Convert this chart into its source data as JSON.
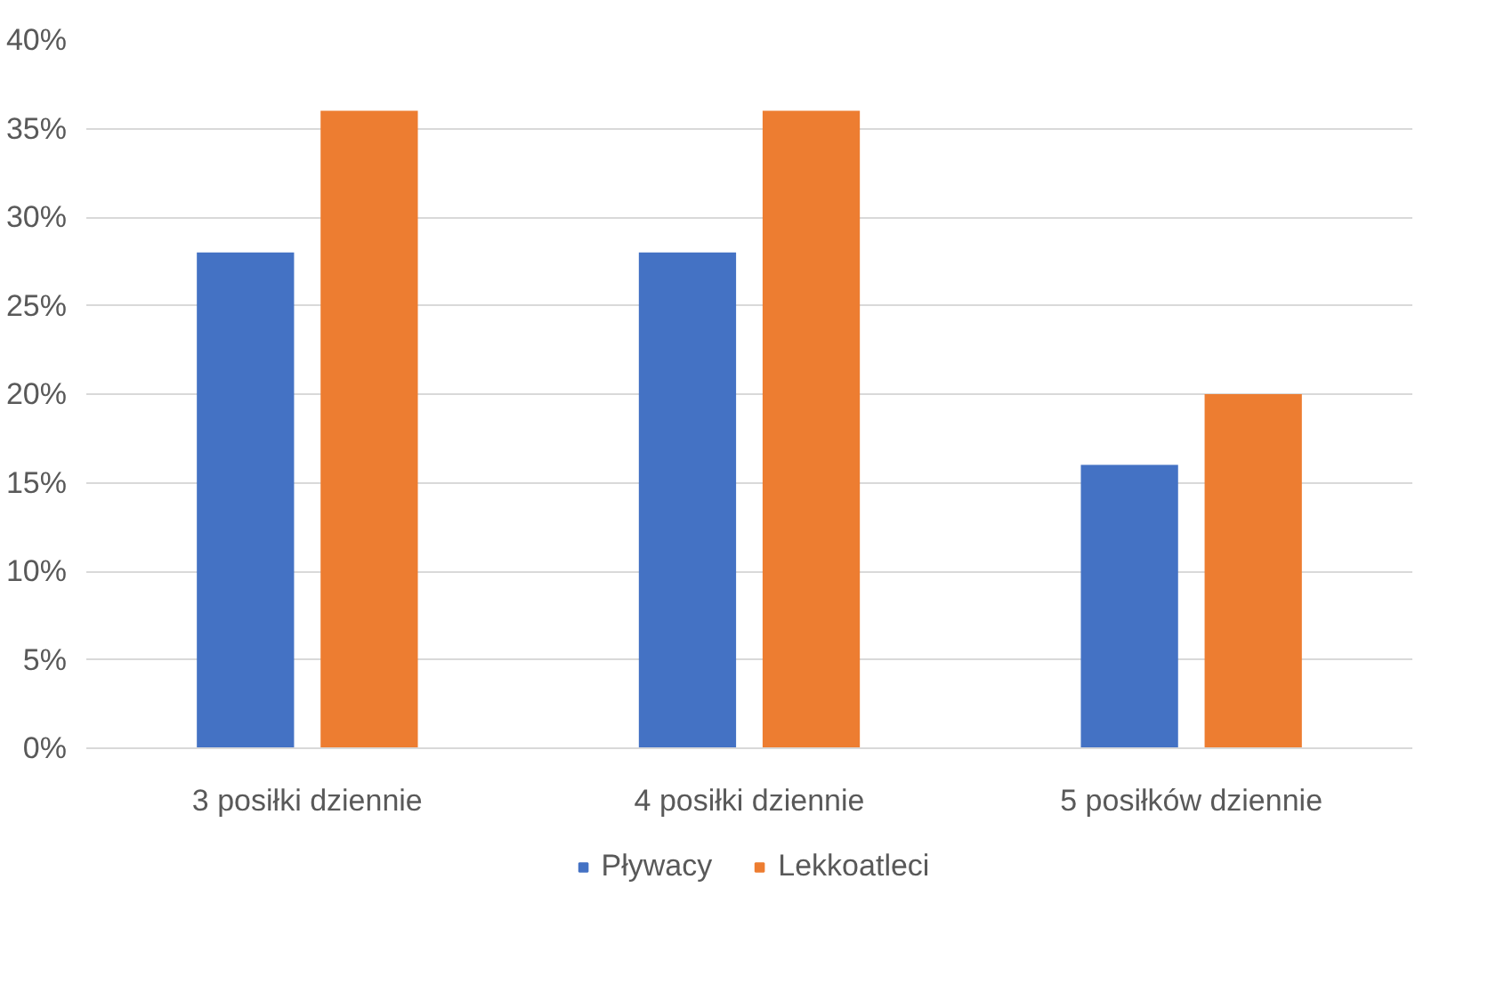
{
  "chart_data": {
    "type": "bar",
    "categories": [
      "3 posiłki dziennie",
      "4 posiłki dziennie",
      "5 posiłków dziennie"
    ],
    "series": [
      {
        "name": "Pływacy",
        "color": "#4472c4",
        "values": [
          28,
          28,
          16
        ]
      },
      {
        "name": "Lekkoatleci",
        "color": "#ed7d31",
        "values": [
          36,
          36,
          20
        ]
      }
    ],
    "ylim": [
      0,
      40
    ],
    "yticks": [
      {
        "value": 0,
        "label": "0%"
      },
      {
        "value": 5,
        "label": "5%"
      },
      {
        "value": 10,
        "label": "10%"
      },
      {
        "value": 15,
        "label": "15%"
      },
      {
        "value": 20,
        "label": "20%"
      },
      {
        "value": 25,
        "label": "25%"
      },
      {
        "value": 30,
        "label": "30%"
      },
      {
        "value": 35,
        "label": "35%"
      },
      {
        "value": 40,
        "label": "40%"
      }
    ],
    "grid": "y",
    "legend": "bottom"
  }
}
